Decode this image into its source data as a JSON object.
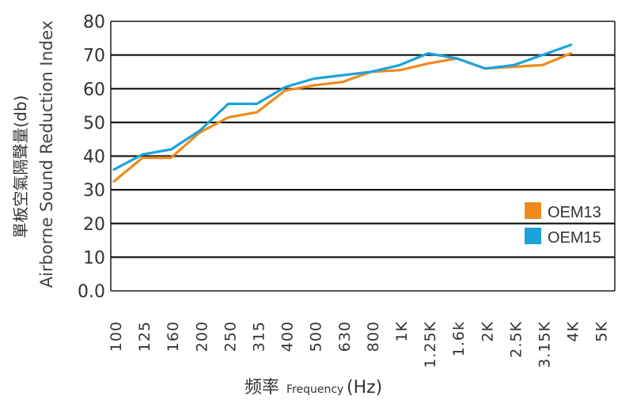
{
  "chart_data": {
    "type": "line",
    "ylabel_cn": "單板空氣隔聲量(db)",
    "ylabel_en": "Airborne Sound Reduction Index",
    "xlabel_cn": "频率",
    "xlabel_en": "Frequency",
    "xlabel_unit": "(Hz)",
    "ylim": [
      0,
      80
    ],
    "yticks": [
      "0.0",
      "10",
      "20",
      "30",
      "40",
      "50",
      "60",
      "70",
      "80"
    ],
    "grid": true,
    "legend_position": "bottom-right",
    "categories": [
      "100",
      "125",
      "160",
      "200",
      "250",
      "315",
      "400",
      "500",
      "630",
      "800",
      "1K",
      "1.25K",
      "1.6k",
      "2K",
      "2.5K",
      "3.15K",
      "4K",
      "5K"
    ],
    "series": [
      {
        "name": "OEM13",
        "color": "#ef8a1a",
        "values": [
          32.5,
          39.5,
          39.5,
          47,
          51.5,
          53,
          59.5,
          61,
          62,
          65,
          65.5,
          67.5,
          69,
          66,
          66.5,
          67,
          70.5,
          null
        ]
      },
      {
        "name": "OEM15",
        "color": "#1aa3db",
        "values": [
          36,
          40.5,
          42,
          47.5,
          55.5,
          55.5,
          60.5,
          63,
          64,
          65,
          67,
          70.5,
          69,
          66,
          67,
          70,
          73,
          null
        ]
      }
    ]
  }
}
